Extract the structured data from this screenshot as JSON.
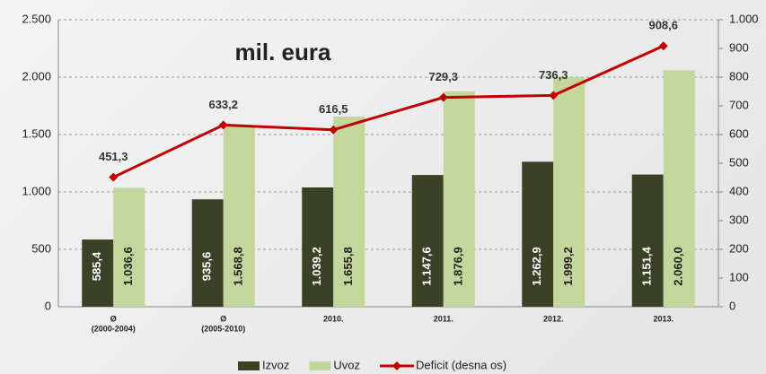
{
  "chart_data": {
    "type": "bar",
    "annotation": "mil. eura",
    "categories": [
      [
        "Ø",
        "(2000-2004)"
      ],
      [
        "Ø",
        "(2005-2010)"
      ],
      [
        "2010."
      ],
      [
        "2011."
      ],
      [
        "2012."
      ],
      [
        "2013."
      ]
    ],
    "series": [
      {
        "name": "Izvoz",
        "color": "#3a4125",
        "values": [
          585.4,
          935.6,
          1039.2,
          1147.6,
          1262.9,
          1151.4
        ],
        "value_labels": [
          "585,4",
          "935,6",
          "1.039,2",
          "1.147,6",
          "1.262,9",
          "1.151,4"
        ]
      },
      {
        "name": "Uvoz",
        "color": "#c3d69b",
        "values": [
          1036.6,
          1568.8,
          1655.8,
          1876.9,
          1999.2,
          2060.0
        ],
        "value_labels": [
          "1.036,6",
          "1.568,8",
          "1.655,8",
          "1.876,9",
          "1.999,2",
          "2.060,0"
        ]
      },
      {
        "name": "Deficit (desna os)",
        "color": "#c00000",
        "type": "line",
        "axis": "y2",
        "values": [
          451.3,
          633.2,
          616.5,
          729.3,
          736.3,
          908.6
        ],
        "value_labels": [
          "451,3",
          "633,2",
          "616,5",
          "729,3",
          "736,3",
          "908,6"
        ]
      }
    ],
    "ylim": [
      0,
      2500
    ],
    "yticks": [
      0,
      500,
      {
        "value": 1000,
        "label": "1.000"
      },
      {
        "value": 1500,
        "label": "1.500"
      },
      {
        "value": 2000,
        "label": "2.000"
      },
      {
        "value": 2500,
        "label": "2.500"
      }
    ],
    "y2lim": [
      0,
      1000
    ],
    "y2ticks": [
      0,
      100,
      200,
      300,
      400,
      500,
      600,
      700,
      800,
      900,
      {
        "value": 1000,
        "label": "1.000"
      }
    ],
    "grid": true
  }
}
